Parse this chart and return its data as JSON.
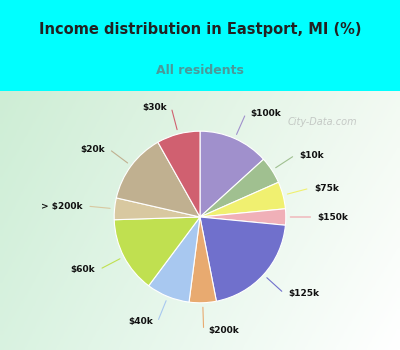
{
  "title": "Income distribution in Eastport, MI (%)",
  "subtitle": "All residents",
  "title_color": "#222222",
  "subtitle_color": "#4a9a9a",
  "bg_color_top": "#00FFFF",
  "watermark": "City-Data.com",
  "labels": [
    "$100k",
    "$10k",
    "$75k",
    "$150k",
    "$125k",
    "$200k",
    "$40k",
    "$60k",
    "> $200k",
    "$20k",
    "$30k"
  ],
  "values": [
    13,
    5,
    5,
    3,
    20,
    5,
    8,
    14,
    4,
    13,
    8
  ],
  "colors": [
    "#a090cc",
    "#a0c090",
    "#f0f070",
    "#f0b0b8",
    "#7070cc",
    "#e8aa70",
    "#a8c8f0",
    "#c0e050",
    "#d8c8a0",
    "#c0b090",
    "#d06070"
  ],
  "line_colors": [
    "#a090cc",
    "#a0c090",
    "#f0f070",
    "#f0a0a8",
    "#7070cc",
    "#e8aa70",
    "#a8c8f0",
    "#c0e050",
    "#d8c8a0",
    "#c0b090",
    "#d06070"
  ]
}
